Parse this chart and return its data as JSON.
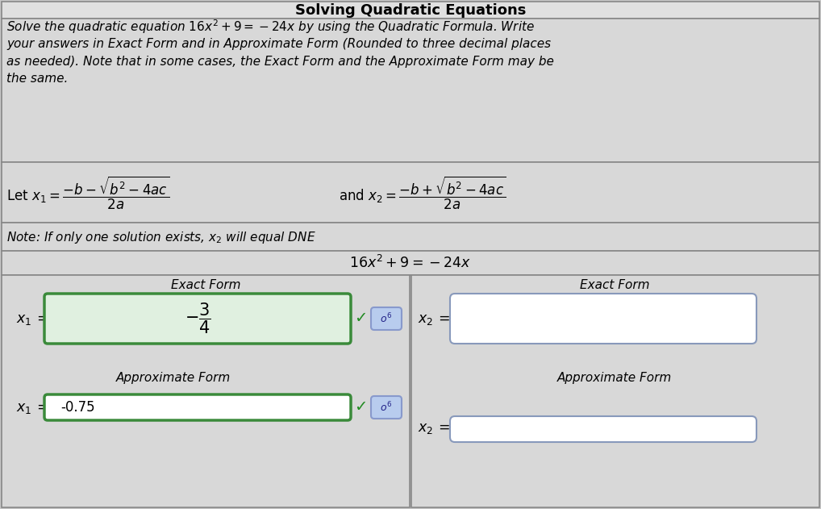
{
  "title": "Solving Quadratic Equations",
  "bg_color": "#c8c8c8",
  "cell_bg": "#d8d8d8",
  "white": "#ffffff",
  "green_border": "#3a8a3a",
  "blue_box_bg": "#b8ccee",
  "title_bar_bg": "#e0e0e0",
  "problem_text_lines": [
    "Solve the quadratic equation $16x^2 + 9 = -24x$ by using the Quadratic Formula. Write",
    "your answers in Exact Form and in Approximate Form (Rounded to three decimal places",
    "as needed). Note that in some cases, the Exact Form and the Approximate Form may be",
    "the same."
  ],
  "note_text": "Note: If only one solution exists, $x_2$ will equal $\\mathit{DNE}$",
  "equation": "$16x^2 + 9 = -24x$",
  "x1_exact_label": "Exact Form",
  "x2_exact_label": "Exact Form",
  "x1_approx_label": "Approximate Form",
  "x2_approx_label": "Approximate Form",
  "x1_approx_value": "-0.75",
  "checkmark": "✓"
}
